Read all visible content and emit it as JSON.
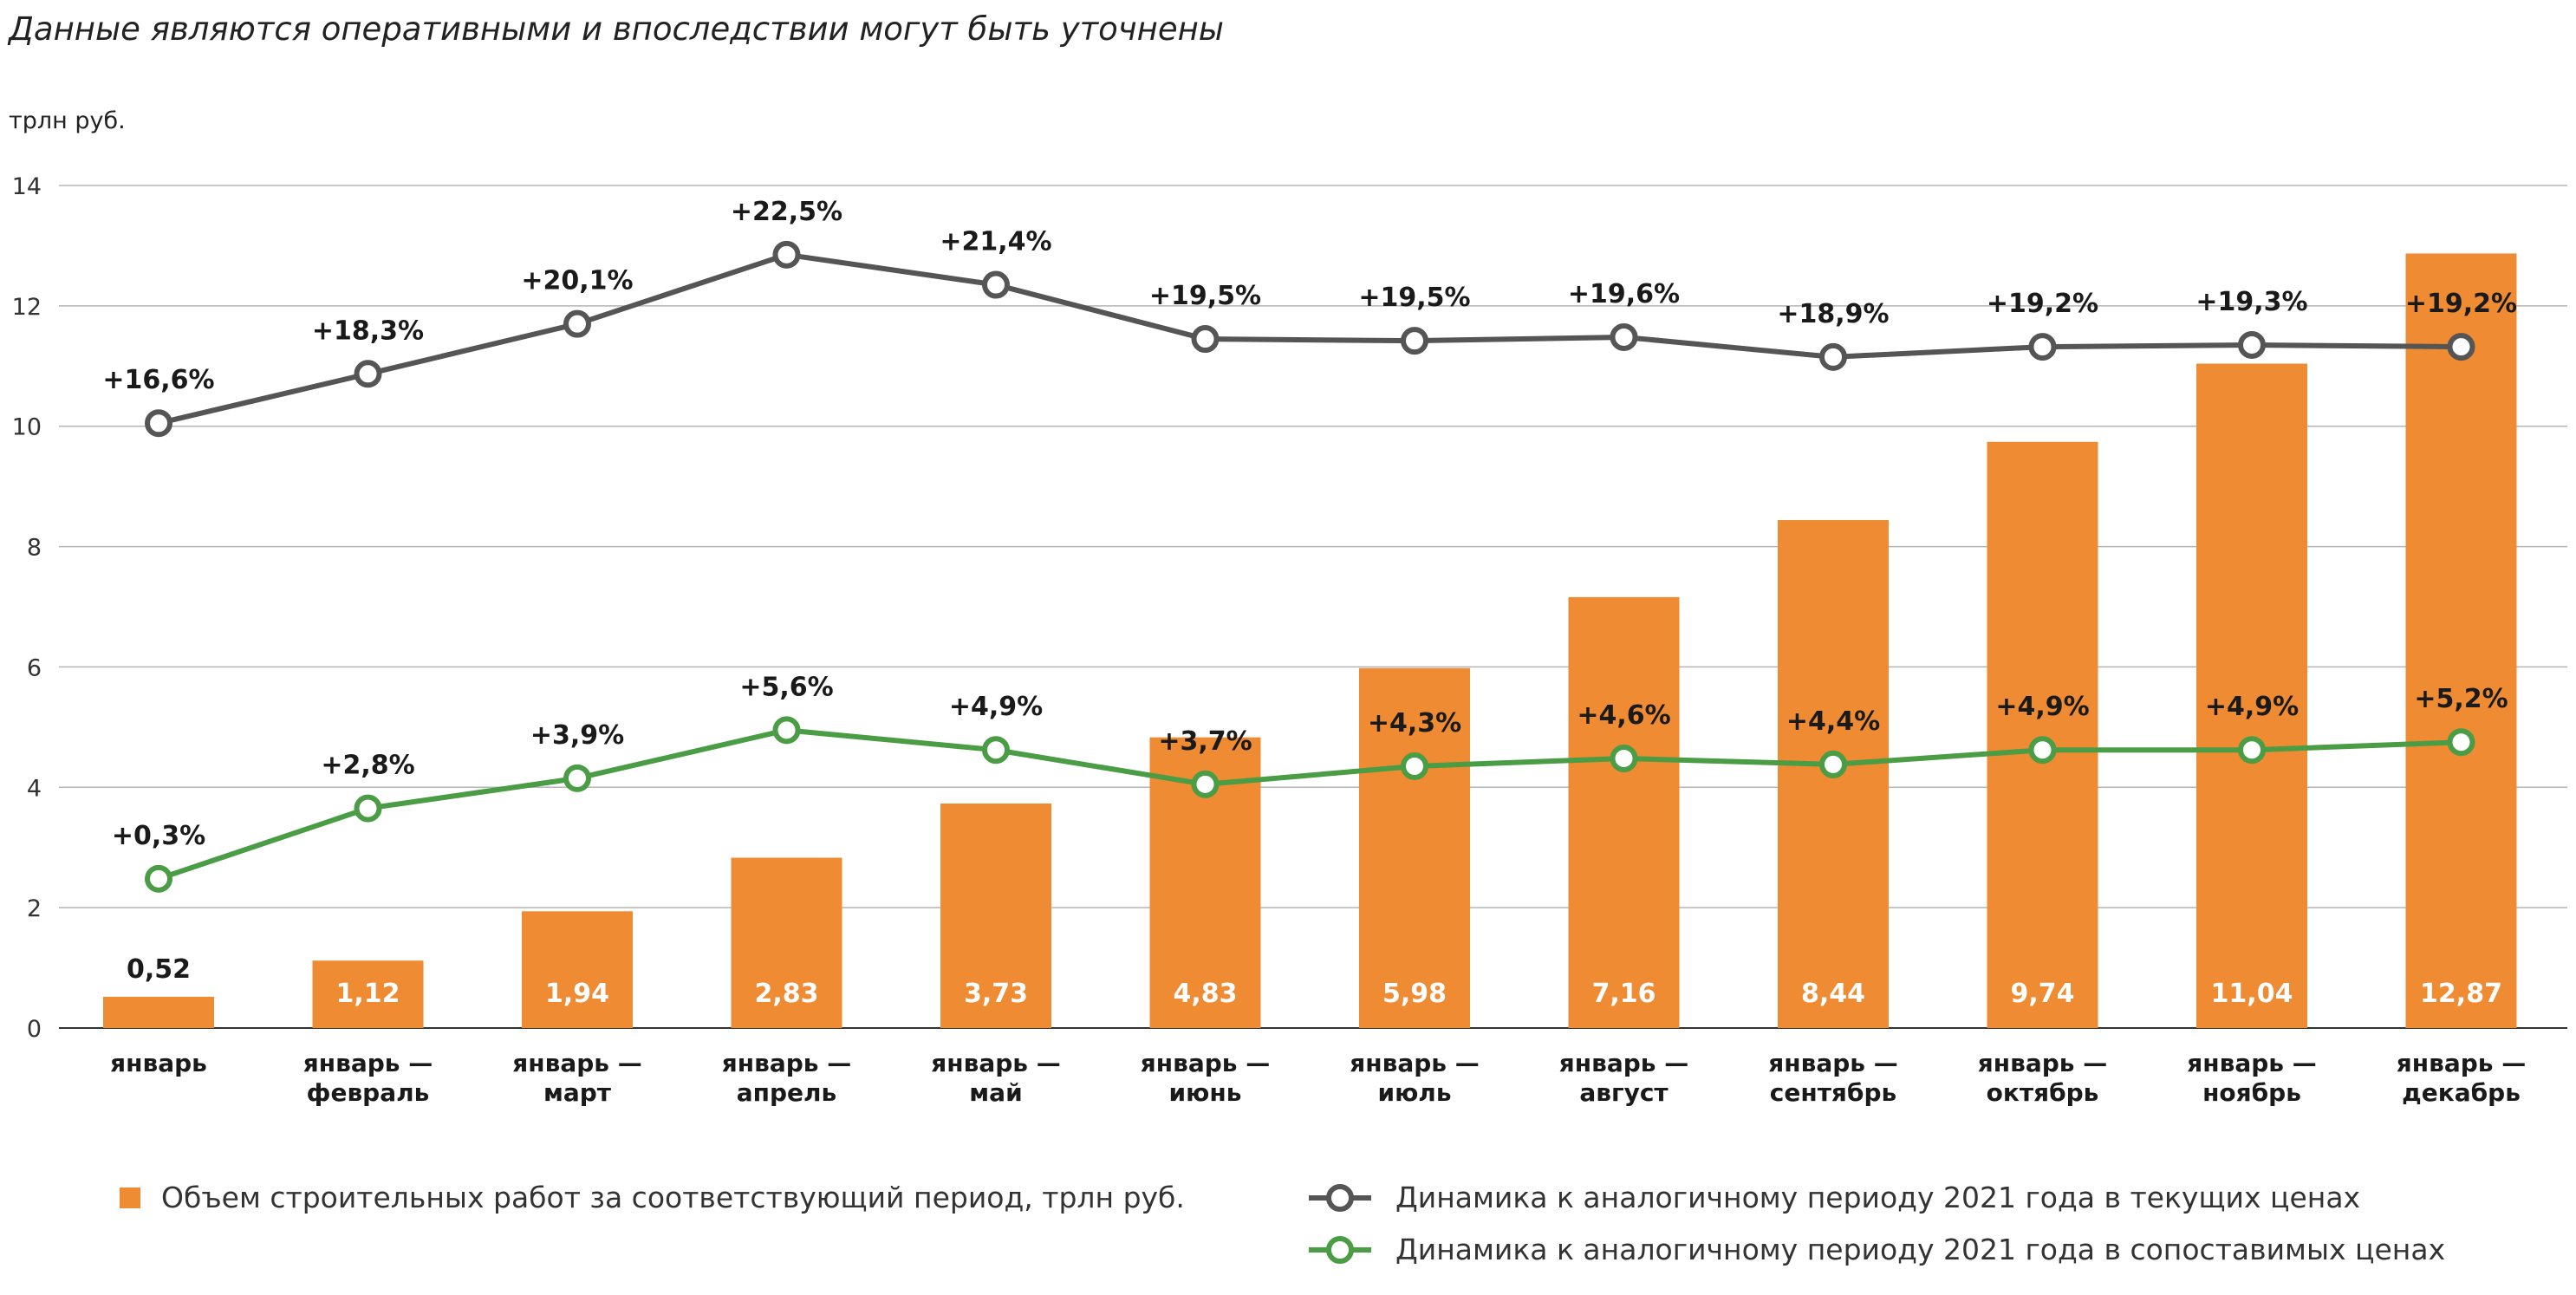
{
  "note": "Данные являются оперативными и впоследствии могут быть уточнены",
  "unit_label": "трлн руб.",
  "legend": {
    "bars": "Объем строительных работ за соответствующий период, трлн руб.",
    "current": "Динамика к аналогичному периоду 2021 года в текущих ценах",
    "comparable": "Динамика к аналогичному периоду 2021 года в сопоставимых ценах"
  },
  "colors": {
    "bar": "#ef8b33",
    "current_line": "#555555",
    "comparable_line": "#4a9d45",
    "grid": "#b5b5b5"
  },
  "chart_data": {
    "type": "bar",
    "ylim": [
      0,
      14
    ],
    "yticks": [
      0,
      2,
      4,
      6,
      8,
      10,
      12,
      14
    ],
    "grid": true,
    "legend_position": "bottom",
    "categories": [
      [
        "январь"
      ],
      [
        "январь —",
        "февраль"
      ],
      [
        "январь —",
        "март"
      ],
      [
        "январь —",
        "апрель"
      ],
      [
        "январь —",
        "май"
      ],
      [
        "январь —",
        "июнь"
      ],
      [
        "январь —",
        "июль"
      ],
      [
        "январь —",
        "август"
      ],
      [
        "январь —",
        "сентябрь"
      ],
      [
        "январь —",
        "октябрь"
      ],
      [
        "январь —",
        "ноябрь"
      ],
      [
        "январь —",
        "декабрь"
      ]
    ],
    "series": [
      {
        "name": "Объем строительных работ за соответствующий период, трлн руб.",
        "type": "bar",
        "values": [
          0.52,
          1.12,
          1.94,
          2.83,
          3.73,
          4.83,
          5.98,
          7.16,
          8.44,
          9.74,
          11.04,
          12.87
        ],
        "labels": [
          "0,52",
          "1,12",
          "1,94",
          "2,83",
          "3,73",
          "4,83",
          "5,98",
          "7,16",
          "8,44",
          "9,74",
          "11,04",
          "12,87"
        ]
      },
      {
        "name": "Динамика к аналогичному периоду 2021 года в текущих ценах",
        "type": "line",
        "plot_y": [
          10.05,
          10.87,
          11.7,
          12.85,
          12.35,
          11.45,
          11.42,
          11.48,
          11.15,
          11.32,
          11.35,
          11.32
        ],
        "labels": [
          "+16,6%",
          "+18,3%",
          "+20,1%",
          "+22,5%",
          "+21,4%",
          "+19,5%",
          "+19,5%",
          "+19,6%",
          "+18,9%",
          "+19,2%",
          "+19,3%",
          "+19,2%"
        ]
      },
      {
        "name": "Динамика к аналогичному периоду 2021 года в сопоставимых ценах",
        "type": "line",
        "plot_y": [
          2.48,
          3.65,
          4.15,
          4.95,
          4.62,
          4.05,
          4.35,
          4.48,
          4.38,
          4.62,
          4.62,
          4.75
        ],
        "labels": [
          "+0,3%",
          "+2,8%",
          "+3,9%",
          "+5,6%",
          "+4,9%",
          "+3,7%",
          "+4,3%",
          "+4,6%",
          "+4,4%",
          "+4,9%",
          "+4,9%",
          "+5,2%"
        ]
      }
    ]
  }
}
